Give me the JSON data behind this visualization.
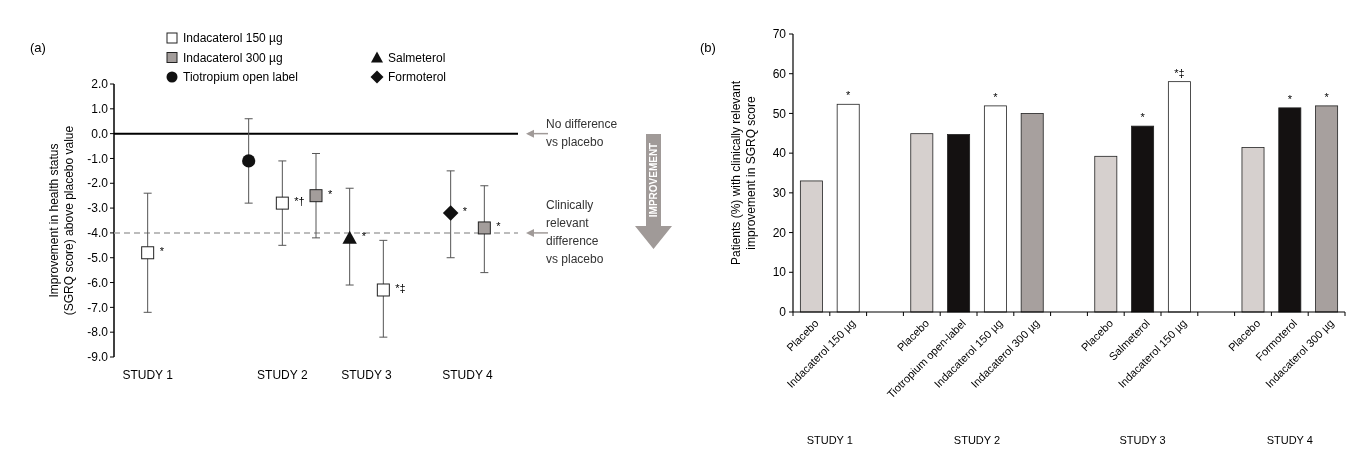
{
  "chart_data": [
    {
      "type": "scatter",
      "title": "(a)",
      "ylabel": "Improvement in health status (SGRQ score) above placebo value",
      "categories": [
        "STUDY 1",
        null,
        null,
        null,
        null,
        null,
        null,
        null,
        "STUDY 2",
        null,
        null,
        null,
        null,
        "STUDY 3",
        null,
        null,
        null,
        null,
        null,
        "STUDY 4",
        null
      ],
      "ylim": [
        -9,
        2
      ],
      "yticks": [
        {
          "value": -9,
          "label": "-9.0"
        },
        {
          "value": -8,
          "label": "-8.0"
        },
        {
          "value": -7,
          "label": "-7.0"
        },
        {
          "value": -6,
          "label": "-6.0"
        },
        {
          "value": -5,
          "label": "-5.0"
        },
        {
          "value": -4,
          "label": "-4.0"
        },
        {
          "value": -3,
          "label": "-3.0"
        },
        {
          "value": -2,
          "label": "-2.0"
        },
        {
          "value": -1,
          "label": "-1.0"
        },
        {
          "value": 0,
          "label": "0.0"
        },
        {
          "value": 1,
          "label": "1.0"
        },
        {
          "value": 2,
          "label": "2.0"
        }
      ],
      "legend": "top",
      "series": [
        {
          "name": "Indacaterol 150 µg",
          "color": "#ffffff",
          "marker": "square",
          "values": [
            -4.8,
            null,
            null,
            null,
            null,
            null,
            null,
            null,
            -2.8,
            null,
            null,
            null,
            null,
            null,
            -6.3,
            null,
            null,
            null,
            null,
            null,
            null
          ],
          "errors": [
            [
              -7.2,
              -2.4
            ],
            null,
            null,
            null,
            null,
            null,
            null,
            null,
            [
              -4.5,
              -1.1
            ],
            null,
            null,
            null,
            null,
            null,
            [
              -8.2,
              -4.3
            ],
            null,
            null,
            null,
            null,
            null,
            null
          ],
          "value_labels": [
            "*",
            null,
            null,
            null,
            null,
            null,
            null,
            null,
            "*†",
            null,
            null,
            null,
            null,
            null,
            "*‡",
            null,
            null,
            null,
            null,
            null,
            null
          ]
        },
        {
          "name": "Indacaterol 300 µg",
          "color": "#a39d9b",
          "marker": "square",
          "values": [
            null,
            null,
            null,
            null,
            null,
            null,
            null,
            null,
            null,
            null,
            -2.5,
            null,
            null,
            null,
            null,
            null,
            null,
            null,
            null,
            null,
            -3.8
          ],
          "errors": [
            null,
            null,
            null,
            null,
            null,
            null,
            null,
            null,
            null,
            null,
            [
              -4.2,
              -0.8
            ],
            null,
            null,
            null,
            null,
            null,
            null,
            null,
            null,
            null,
            [
              -5.6,
              -2.1
            ]
          ],
          "value_labels": [
            null,
            null,
            null,
            null,
            null,
            null,
            null,
            null,
            null,
            null,
            "*",
            null,
            null,
            null,
            null,
            null,
            null,
            null,
            null,
            null,
            "*"
          ]
        },
        {
          "name": "Tiotropium open label",
          "color": "#111111",
          "marker": "circle",
          "values": [
            null,
            null,
            null,
            null,
            null,
            null,
            -1.1,
            null,
            null,
            null,
            null,
            null,
            null,
            null,
            null,
            null,
            null,
            null,
            null,
            null,
            null
          ],
          "errors": [
            null,
            null,
            null,
            null,
            null,
            null,
            [
              -2.8,
              0.6
            ],
            null,
            null,
            null,
            null,
            null,
            null,
            null,
            null,
            null,
            null,
            null,
            null,
            null,
            null
          ]
        },
        {
          "name": "Salmeterol",
          "color": "#111111",
          "marker": "triangle",
          "values": [
            null,
            null,
            null,
            null,
            null,
            null,
            null,
            null,
            null,
            null,
            null,
            null,
            -4.2,
            null,
            null,
            null,
            null,
            null,
            null,
            null,
            null
          ],
          "errors": [
            null,
            null,
            null,
            null,
            null,
            null,
            null,
            null,
            null,
            null,
            null,
            null,
            [
              -6.1,
              -2.2
            ],
            null,
            null,
            null,
            null,
            null,
            null,
            null,
            null
          ],
          "value_labels": [
            null,
            null,
            null,
            null,
            null,
            null,
            null,
            null,
            null,
            null,
            null,
            null,
            "*",
            null,
            null,
            null,
            null,
            null,
            null,
            null,
            null
          ]
        },
        {
          "name": "Formoterol",
          "color": "#111111",
          "marker": "diamond",
          "values": [
            null,
            null,
            null,
            null,
            null,
            null,
            null,
            null,
            null,
            null,
            null,
            null,
            null,
            null,
            null,
            null,
            null,
            null,
            -3.2,
            null,
            null
          ],
          "errors": [
            null,
            null,
            null,
            null,
            null,
            null,
            null,
            null,
            null,
            null,
            null,
            null,
            null,
            null,
            null,
            null,
            null,
            null,
            [
              -5.0,
              -1.5
            ],
            null,
            null
          ],
          "value_labels": [
            null,
            null,
            null,
            null,
            null,
            null,
            null,
            null,
            null,
            null,
            null,
            null,
            null,
            null,
            null,
            null,
            null,
            null,
            "*",
            null,
            null
          ]
        }
      ],
      "ref_lines": [
        {
          "axis": "y",
          "value": 0,
          "label": "No difference vs placebo",
          "color": "#000000",
          "line_style": "solid"
        },
        {
          "axis": "y",
          "value": -4,
          "label": "Clinically relevant difference vs placebo",
          "color": "#a6a6a6",
          "line_style": "dashed"
        }
      ],
      "annotations": [
        "IMPROVEMENT"
      ]
    },
    {
      "type": "bar",
      "title": "(b)",
      "ylabel": "Patients (%) with clinically relevant improvement in SGRQ score",
      "categories": [
        "Placebo",
        "Indacaterol 150 µg",
        null,
        "Placebo",
        "Tiotropium open-label",
        "Indacaterol 150 µg",
        "Indacaterol 300 µg",
        null,
        "Placebo",
        "Salmeterol",
        "Indacaterol 150 µg",
        null,
        "Placebo",
        "Formoterol",
        "Indacaterol 300 µg"
      ],
      "values": [
        33.0,
        52.3,
        null,
        44.9,
        44.7,
        51.9,
        50.0,
        null,
        39.2,
        46.8,
        58.0,
        null,
        41.4,
        51.4,
        51.9
      ],
      "colors": [
        "#d6d0ce",
        "#ffffff",
        null,
        "#d6d0ce",
        "#141111",
        "#ffffff",
        "#a7a09e",
        null,
        "#d6d0ce",
        "#141111",
        "#ffffff",
        null,
        "#d6d0ce",
        "#141111",
        "#a7a09e"
      ],
      "value_labels": [
        null,
        "*",
        null,
        null,
        null,
        "*",
        null,
        null,
        null,
        "*",
        "*‡",
        null,
        null,
        "*",
        "*"
      ],
      "ylim": [
        0,
        70
      ],
      "yticks": [
        0,
        10,
        20,
        30,
        40,
        50,
        60,
        70
      ],
      "annotations": [
        "STUDY 1",
        "STUDY 2",
        "STUDY 3",
        "STUDY 4"
      ]
    }
  ]
}
